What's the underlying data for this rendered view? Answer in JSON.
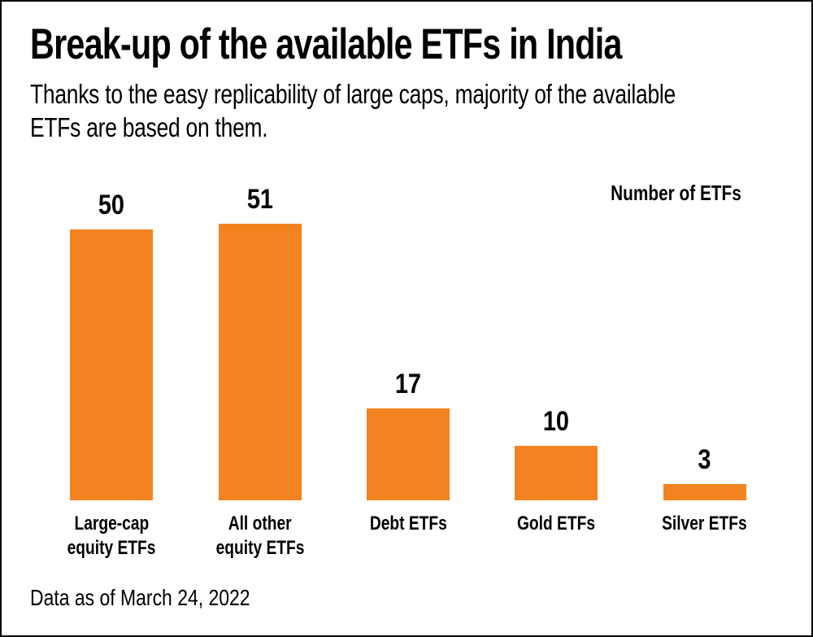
{
  "header": {
    "title": "Break-up of the available ETFs in India",
    "subtitle_lines": [
      "Thanks to the easy replicability of large caps, majority of the available",
      "ETFs are based on them."
    ]
  },
  "chart_data": {
    "type": "bar",
    "title": "Break-up of the available ETFs in India",
    "subtitle": "Thanks to the easy replicability of large caps, majority of the available ETFs are based on them.",
    "unit_label": "Number of ETFs",
    "categories": [
      "Large-cap equity ETFs",
      "All other equity ETFs",
      "Debt ETFs",
      "Gold ETFs",
      "Silver ETFs"
    ],
    "category_label_lines": [
      [
        "Large-cap",
        "equity ETFs"
      ],
      [
        "All other",
        "equity ETFs"
      ],
      [
        "Debt ETFs"
      ],
      [
        "Gold ETFs"
      ],
      [
        "Silver ETFs"
      ]
    ],
    "values": [
      50,
      51,
      17,
      10,
      3
    ],
    "value_labels": [
      "50",
      "51",
      "17",
      "10",
      "3"
    ],
    "ylim": [
      0,
      51
    ],
    "grid": false,
    "legend": "none",
    "bar_color": "#F28320",
    "text_color": "#000000"
  },
  "footer": {
    "note": "Data as of March 24, 2022"
  }
}
